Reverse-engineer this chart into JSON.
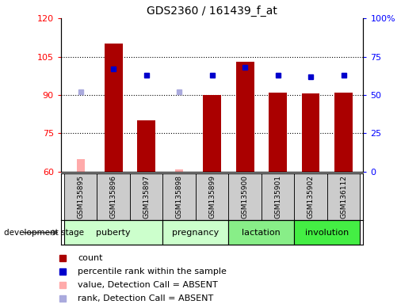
{
  "title": "GDS2360 / 161439_f_at",
  "samples": [
    "GSM135895",
    "GSM135896",
    "GSM135897",
    "GSM135898",
    "GSM135899",
    "GSM135900",
    "GSM135901",
    "GSM135902",
    "GSM136112"
  ],
  "bar_values": [
    null,
    110,
    80,
    null,
    90,
    103,
    91,
    90.5,
    91
  ],
  "bar_absent": [
    65,
    null,
    null,
    61,
    null,
    null,
    null,
    null,
    null
  ],
  "rank_present": [
    null,
    67,
    63,
    null,
    63,
    68,
    63,
    62,
    63
  ],
  "rank_absent": [
    52,
    null,
    null,
    52,
    null,
    null,
    null,
    null,
    null
  ],
  "ylim_left": [
    60,
    120
  ],
  "ylim_right": [
    0,
    100
  ],
  "yticks_left": [
    60,
    75,
    90,
    105,
    120
  ],
  "yticks_right": [
    0,
    25,
    50,
    75,
    100
  ],
  "yticklabels_right": [
    "0",
    "25",
    "50",
    "75",
    "100%"
  ],
  "bar_color_present": "#aa0000",
  "bar_color_absent": "#ffaaaa",
  "rank_color_present": "#0000cc",
  "rank_color_absent": "#aaaadd",
  "stage_defs": [
    {
      "label": "puberty",
      "start": 0,
      "end": 2,
      "color": "#ccffcc"
    },
    {
      "label": "pregnancy",
      "start": 3,
      "end": 4,
      "color": "#ccffcc"
    },
    {
      "label": "lactation",
      "start": 5,
      "end": 6,
      "color": "#88ee88"
    },
    {
      "label": "involution",
      "start": 7,
      "end": 8,
      "color": "#44ee44"
    }
  ]
}
